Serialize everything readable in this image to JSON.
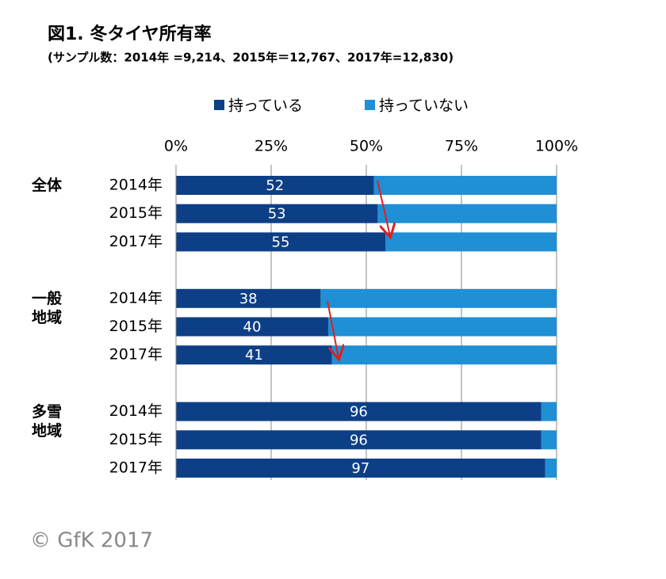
{
  "chart_data": {
    "type": "stacked-barh",
    "title": "図1. 冬タイヤ所有率",
    "subtitle": "(サンプル数：2014年 =9,214、2015年＝12,767、2017年=12,830)",
    "group_labels": [
      "全体",
      null,
      null,
      "一般地域",
      null,
      null,
      "多雪地域",
      null,
      null
    ],
    "categories": [
      "2014年",
      "2015年",
      "2017年",
      "2014年",
      "2015年",
      "2017年",
      "2014年",
      "2015年",
      "2017年"
    ],
    "series": [
      {
        "name": "持っている",
        "color": "#0d3f87",
        "values": [
          52,
          53,
          55,
          38,
          40,
          41,
          96,
          96,
          97
        ]
      },
      {
        "name": "持っていない",
        "color": "#1f8fd6",
        "values": [
          48,
          47,
          45,
          62,
          60,
          59,
          4,
          4,
          3
        ]
      }
    ],
    "xlim": [
      0,
      100
    ],
    "xticks": [
      {
        "value": 0,
        "label": "0%"
      },
      {
        "value": 25,
        "label": "25%"
      },
      {
        "value": 50,
        "label": "50%"
      },
      {
        "value": 75,
        "label": "75%"
      },
      {
        "value": 100,
        "label": "100%"
      }
    ],
    "grid": true,
    "legend": "top",
    "source": "© GfK 2017"
  }
}
